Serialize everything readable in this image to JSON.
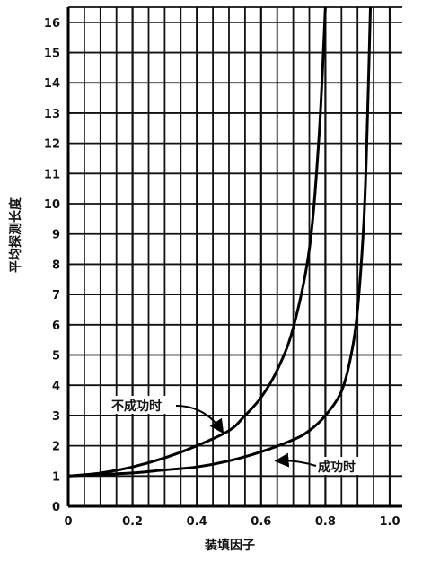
{
  "chart_data": {
    "type": "line",
    "title": "",
    "xlabel": "装填因子",
    "ylabel": "平均探测长度",
    "xlim": [
      0,
      1.0
    ],
    "ylim": [
      0,
      16.5
    ],
    "grid": true,
    "x_ticks": [
      "0",
      "0.2",
      "0.4",
      "0.6",
      "0.8",
      "1.0"
    ],
    "y_ticks": [
      "0",
      "1",
      "2",
      "3",
      "4",
      "5",
      "6",
      "7",
      "8",
      "9",
      "10",
      "11",
      "12",
      "13",
      "14",
      "15",
      "16"
    ],
    "series": [
      {
        "name": "不成功时",
        "x": [
          0,
          0.1,
          0.2,
          0.3,
          0.4,
          0.5,
          0.55,
          0.6,
          0.65,
          0.7,
          0.75,
          0.78,
          0.8
        ],
        "y": [
          1.0,
          1.1,
          1.3,
          1.6,
          2.0,
          2.5,
          3.0,
          3.6,
          4.5,
          5.9,
          8.5,
          12.2,
          16.5
        ]
      },
      {
        "name": "成功时",
        "x": [
          0,
          0.1,
          0.2,
          0.3,
          0.4,
          0.5,
          0.6,
          0.7,
          0.75,
          0.8,
          0.85,
          0.88,
          0.9,
          0.92,
          0.93,
          0.94
        ],
        "y": [
          1.0,
          1.05,
          1.1,
          1.2,
          1.3,
          1.5,
          1.8,
          2.2,
          2.5,
          3.0,
          3.8,
          5.0,
          6.5,
          9.5,
          12.5,
          16.5
        ]
      }
    ],
    "annotations": [
      {
        "text": "不成功时",
        "points_to": "不成功时"
      },
      {
        "text": "成功时",
        "points_to": "成功时"
      }
    ]
  }
}
